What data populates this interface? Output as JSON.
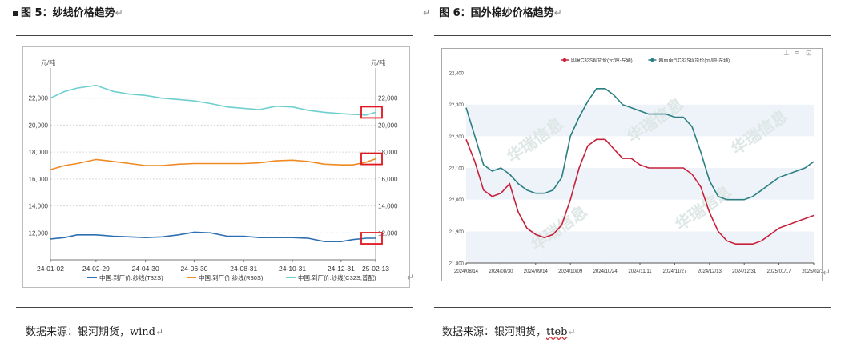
{
  "left": {
    "heading": "图 5：纱线价格趋势",
    "source": "数据来源：银河期货，wind",
    "chart_data": {
      "type": "line",
      "title": "",
      "ylabel_left": "元/吨",
      "ylabel_right": "元/吨",
      "ylim": [
        10000,
        24000
      ],
      "yticks": [
        "12,000",
        "14,000",
        "16,000",
        "18,000",
        "20,000",
        "22,000"
      ],
      "x_ticks": [
        "24-01-02",
        "24-02-29",
        "24-04-30",
        "24-06-30",
        "24-08-31",
        "24-10-31",
        "24-12-31",
        "25-02-13"
      ],
      "legend_position": "bottom",
      "series": [
        {
          "name": "中国:到厂价:纱线(T32S)",
          "color": "#2e6fb2",
          "x": [
            "24-01-02",
            "24-01-20",
            "24-02-05",
            "24-02-29",
            "24-03-20",
            "24-04-10",
            "24-04-30",
            "24-05-20",
            "24-06-10",
            "24-06-30",
            "24-07-20",
            "24-08-10",
            "24-08-31",
            "24-09-20",
            "24-10-10",
            "24-10-31",
            "24-11-20",
            "24-12-10",
            "24-12-31",
            "25-01-15",
            "25-02-01",
            "25-02-13"
          ],
          "values": [
            11550,
            11650,
            11850,
            11850,
            11750,
            11700,
            11650,
            11700,
            11850,
            12050,
            12000,
            11750,
            11750,
            11650,
            11650,
            11650,
            11600,
            11350,
            11350,
            11500,
            11600,
            11600
          ]
        },
        {
          "name": "中国:到厂价:纱线(R30S)",
          "color": "#f08a24",
          "x": [
            "24-01-02",
            "24-01-20",
            "24-02-05",
            "24-02-29",
            "24-03-20",
            "24-04-10",
            "24-04-30",
            "24-05-20",
            "24-06-10",
            "24-06-30",
            "24-07-20",
            "24-08-10",
            "24-08-31",
            "24-09-20",
            "24-10-10",
            "24-10-31",
            "24-11-20",
            "24-12-10",
            "24-12-31",
            "25-01-15",
            "25-02-01",
            "25-02-13"
          ],
          "values": [
            16700,
            17000,
            17150,
            17450,
            17300,
            17150,
            17000,
            17000,
            17100,
            17150,
            17150,
            17150,
            17150,
            17200,
            17350,
            17400,
            17300,
            17100,
            17050,
            17050,
            17250,
            17500
          ]
        },
        {
          "name": "中国:到厂价:纱线(C32S,普配)",
          "color": "#6fcfcf",
          "x": [
            "24-01-02",
            "24-01-20",
            "24-02-05",
            "24-02-29",
            "24-03-20",
            "24-04-10",
            "24-04-30",
            "24-05-20",
            "24-06-10",
            "24-06-30",
            "24-07-20",
            "24-08-10",
            "24-08-31",
            "24-09-20",
            "24-10-10",
            "24-10-31",
            "24-11-20",
            "24-12-10",
            "24-12-31",
            "25-01-15",
            "25-02-01",
            "25-02-13"
          ],
          "values": [
            22000,
            22500,
            22750,
            22950,
            22500,
            22300,
            22200,
            22000,
            21900,
            21800,
            21600,
            21350,
            21250,
            21150,
            21400,
            21350,
            21100,
            20950,
            20850,
            20800,
            20750,
            20950
          ]
        }
      ]
    }
  },
  "right": {
    "heading": "图 6：国外棉纱价格趋势",
    "source": "数据来源：银河期货，",
    "source_tail": "tteb",
    "watermark": "华瑞信息",
    "chart_data": {
      "type": "line",
      "title": "",
      "ylim": [
        21800,
        22400
      ],
      "yticks": [
        "21,800",
        "21,900",
        "22,000",
        "22,100",
        "22,200",
        "22,300",
        "22,400"
      ],
      "x_ticks": [
        "2024/08/14",
        "2024/08/30",
        "2024/09/14",
        "2024/10/09",
        "2024/10/24",
        "2024/11/11",
        "2024/11/27",
        "2024/12/13",
        "2024/12/31",
        "2025/01/17",
        "2025/02/11"
      ],
      "legend_position": "top",
      "series": [
        {
          "name": "印度C32S现货价(元/吨-左轴)",
          "color": "#c8203a",
          "values": [
            22190,
            22120,
            22030,
            22010,
            22020,
            22050,
            21960,
            21910,
            21890,
            21880,
            21890,
            21920,
            22000,
            22100,
            22170,
            22190,
            22190,
            22160,
            22130,
            22130,
            22110,
            22100,
            22100,
            22100,
            22100,
            22100,
            22080,
            22040,
            21960,
            21900,
            21870,
            21860,
            21860,
            21860,
            21870,
            21890,
            21910,
            21920,
            21930,
            21940,
            21950
          ]
        },
        {
          "name": "越南南气C32S现货价(元/吨-左轴)",
          "color": "#2b7f82",
          "values": [
            22290,
            22200,
            22110,
            22090,
            22100,
            22080,
            22050,
            22030,
            22020,
            22020,
            22030,
            22070,
            22200,
            22260,
            22310,
            22350,
            22350,
            22330,
            22300,
            22290,
            22280,
            22270,
            22270,
            22270,
            22260,
            22260,
            22230,
            22150,
            22060,
            22010,
            22000,
            22000,
            22000,
            22010,
            22030,
            22050,
            22070,
            22080,
            22090,
            22100,
            22120
          ]
        }
      ]
    }
  }
}
